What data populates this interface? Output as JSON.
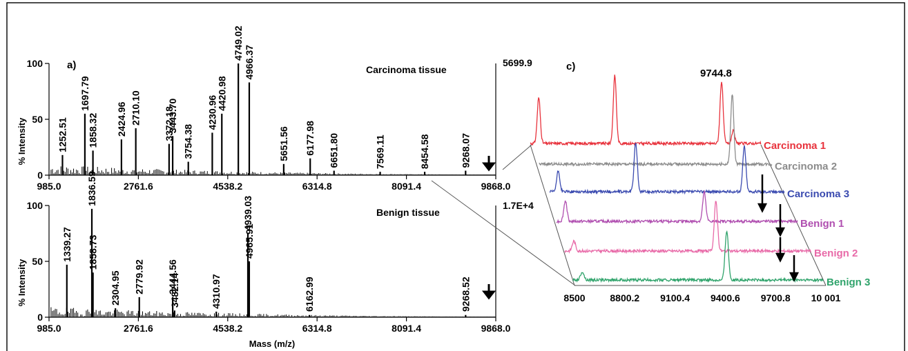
{
  "chart_data": [
    {
      "type": "line",
      "panel_label": "a)",
      "title": "Carcinoma tissue",
      "ylabel": "% Intensity",
      "ylim": [
        0,
        100
      ],
      "yticks": [
        "0",
        "50",
        "100"
      ],
      "xlim": [
        985.0,
        9868.0
      ],
      "xticks": [
        "985.0",
        "2761.6",
        "4538.2",
        "6314.8",
        "8091.4",
        "9868.0"
      ],
      "max_intensity": "5699.9",
      "peaks": [
        {
          "x": 1252.51,
          "y": 18,
          "label": "1252.51"
        },
        {
          "x": 1697.79,
          "y": 55,
          "label": "1697.79"
        },
        {
          "x": 1858.32,
          "y": 22,
          "label": "1858.32"
        },
        {
          "x": 2424.96,
          "y": 32,
          "label": "2424.96"
        },
        {
          "x": 2710.1,
          "y": 42,
          "label": "2710.10"
        },
        {
          "x": 3372.18,
          "y": 28,
          "label": "3372.18"
        },
        {
          "x": 3443.7,
          "y": 35,
          "label": "3443.70"
        },
        {
          "x": 3754.38,
          "y": 12,
          "label": "3754.38"
        },
        {
          "x": 4230.96,
          "y": 38,
          "label": "4230.96"
        },
        {
          "x": 4420.98,
          "y": 55,
          "label": "4420.98"
        },
        {
          "x": 4749.02,
          "y": 100,
          "label": "4749.02"
        },
        {
          "x": 4966.37,
          "y": 83,
          "label": "4966.37"
        },
        {
          "x": 5651.56,
          "y": 10,
          "label": "5651.56"
        },
        {
          "x": 6177.98,
          "y": 15,
          "label": "6177.98"
        },
        {
          "x": 6651.8,
          "y": 4,
          "label": "6651.80"
        },
        {
          "x": 7569.11,
          "y": 3,
          "label": "7569.11"
        },
        {
          "x": 8454.58,
          "y": 3,
          "label": "8454.58"
        },
        {
          "x": 9268.07,
          "y": 4,
          "label": "9268.07"
        }
      ]
    },
    {
      "type": "line",
      "title": "Benign tissue",
      "ylabel": "% Intensity",
      "xlabel": "Mass (m/z)",
      "ylim": [
        0,
        100
      ],
      "yticks": [
        "0",
        "50",
        "100"
      ],
      "xlim": [
        985.0,
        9868.0
      ],
      "xticks": [
        "985.0",
        "2761.6",
        "4538.2",
        "6314.8",
        "8091.4",
        "9868.0"
      ],
      "max_intensity": "1.7E+4",
      "peaks": [
        {
          "x": 1339.27,
          "y": 47,
          "label": "1339.27"
        },
        {
          "x": 1836.59,
          "y": 97,
          "label": "1836.59"
        },
        {
          "x": 1858.73,
          "y": 40,
          "label": "1858.73"
        },
        {
          "x": 2304.95,
          "y": 8,
          "label": "2304.95"
        },
        {
          "x": 2779.92,
          "y": 18,
          "label": "2779.92"
        },
        {
          "x": 3444.56,
          "y": 18,
          "label": "3444.56"
        },
        {
          "x": 3482.14,
          "y": 6,
          "label": "3482.14"
        },
        {
          "x": 4310.97,
          "y": 5,
          "label": "4310.97"
        },
        {
          "x": 4939.03,
          "y": 75,
          "label": "4939.03"
        },
        {
          "x": 4965.91,
          "y": 50,
          "label": "4965.91"
        },
        {
          "x": 6162.99,
          "y": 2,
          "label": "6162.99"
        },
        {
          "x": 9268.52,
          "y": 2,
          "label": "9268.52"
        }
      ]
    },
    {
      "type": "line",
      "panel_label": "c)",
      "xlim": [
        8500,
        10001
      ],
      "xticks": [
        "8500",
        "8800.2",
        "9100.4",
        "9400.6",
        "9700.8",
        "10 001"
      ],
      "annotation": "9744.8",
      "series": [
        {
          "name": "Carcinoma 1",
          "color": "#e8323c",
          "peaks": [
            {
              "x": 8555,
              "y": 55
            },
            {
              "x": 9050,
              "y": 82
            },
            {
              "x": 9744.8,
              "y": 75
            },
            {
              "x": 9820,
              "y": 15
            }
          ]
        },
        {
          "name": "Carcinoma 2",
          "color": "#8c8c8c",
          "peaks": [
            {
              "x": 9744.8,
              "y": 85
            }
          ]
        },
        {
          "name": "Carcinoma 3",
          "color": "#3b4bb0",
          "peaks": [
            {
              "x": 8555,
              "y": 25
            },
            {
              "x": 9050,
              "y": 60
            },
            {
              "x": 9744.8,
              "y": 55
            }
          ]
        },
        {
          "name": "Benign 1",
          "color": "#b04fb0",
          "peaks": [
            {
              "x": 8555,
              "y": 25
            },
            {
              "x": 9420,
              "y": 35
            }
          ]
        },
        {
          "name": "Benign 2",
          "color": "#e86aa8",
          "peaks": [
            {
              "x": 8555,
              "y": 12
            },
            {
              "x": 9420,
              "y": 60
            }
          ]
        },
        {
          "name": "Benign 3",
          "color": "#2fa36b",
          "peaks": [
            {
              "x": 8555,
              "y": 10
            },
            {
              "x": 9420,
              "y": 60
            }
          ]
        }
      ]
    }
  ]
}
